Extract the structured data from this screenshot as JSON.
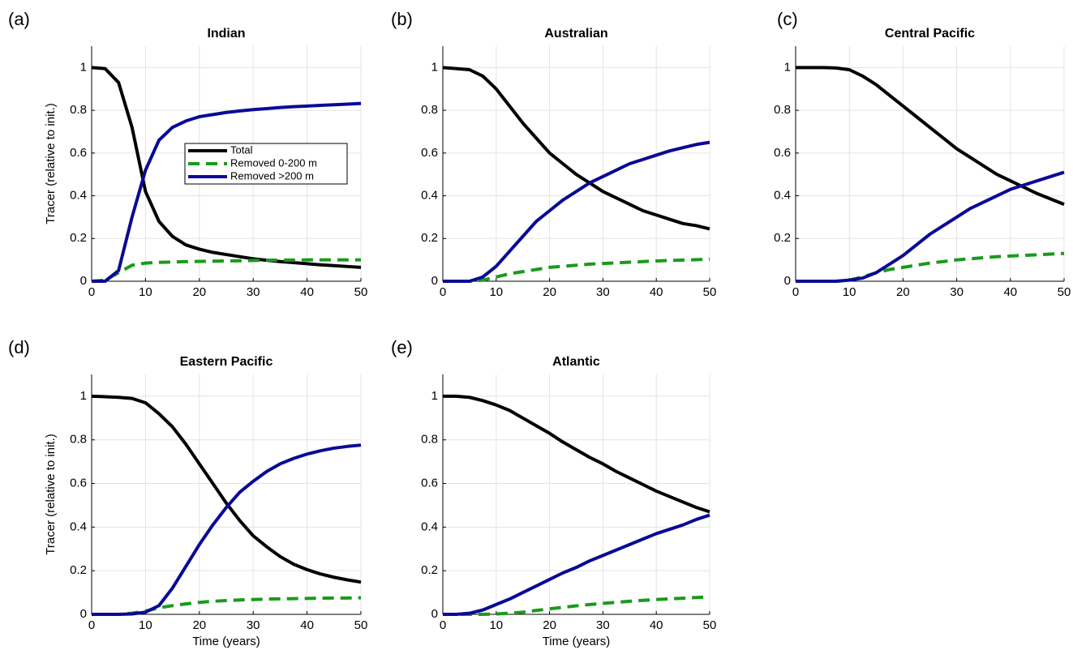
{
  "chart_data": [
    {
      "type": "line",
      "label": "(a)",
      "title": "Indian",
      "ylabel": "Tracer (relative to init.)",
      "x": [
        0,
        2.5,
        5,
        7.5,
        10,
        12.5,
        15,
        17.5,
        20,
        22.5,
        25,
        27.5,
        30,
        32.5,
        35,
        37.5,
        40,
        42.5,
        45,
        47.5,
        50
      ],
      "series": [
        {
          "name": "Total",
          "color": "#000000",
          "dash": false,
          "values": [
            1,
            0.995,
            0.93,
            0.72,
            0.42,
            0.28,
            0.21,
            0.17,
            0.15,
            0.135,
            0.125,
            0.115,
            0.105,
            0.098,
            0.092,
            0.087,
            0.082,
            0.077,
            0.073,
            0.069,
            0.065
          ]
        },
        {
          "name": "Removed 0-200 m",
          "color": "#1a9a1a",
          "dash": true,
          "values": [
            0,
            0.005,
            0.04,
            0.075,
            0.085,
            0.088,
            0.09,
            0.092,
            0.093,
            0.094,
            0.095,
            0.096,
            0.097,
            0.098,
            0.099,
            0.099,
            0.1,
            0.1,
            0.1,
            0.1,
            0.1
          ]
        },
        {
          "name": "Removed >200 m",
          "color": "#0a0a96",
          "dash": false,
          "values": [
            0,
            0,
            0.05,
            0.3,
            0.52,
            0.66,
            0.72,
            0.75,
            0.77,
            0.78,
            0.79,
            0.797,
            0.803,
            0.808,
            0.813,
            0.817,
            0.82,
            0.823,
            0.826,
            0.829,
            0.832
          ]
        }
      ],
      "xlim": [
        0,
        50
      ],
      "xticks": [
        0,
        10,
        20,
        30,
        40,
        50
      ],
      "ylim": [
        0,
        1.1
      ],
      "yticks": [
        0,
        0.2,
        0.4,
        0.6,
        0.8,
        1
      ],
      "grid": true,
      "legend": "center right"
    },
    {
      "type": "line",
      "label": "(b)",
      "title": "Australian",
      "x": [
        0,
        2.5,
        5,
        7.5,
        10,
        12.5,
        15,
        17.5,
        20,
        22.5,
        25,
        27.5,
        30,
        32.5,
        35,
        37.5,
        40,
        42.5,
        45,
        47.5,
        50
      ],
      "series": [
        {
          "color": "#000000",
          "dash": false,
          "values": [
            1,
            0.995,
            0.99,
            0.96,
            0.9,
            0.82,
            0.74,
            0.67,
            0.6,
            0.55,
            0.5,
            0.46,
            0.42,
            0.39,
            0.36,
            0.33,
            0.31,
            0.29,
            0.27,
            0.26,
            0.245
          ]
        },
        {
          "color": "#1a9a1a",
          "dash": true,
          "values": [
            0,
            0,
            0,
            0.005,
            0.02,
            0.035,
            0.045,
            0.055,
            0.065,
            0.07,
            0.075,
            0.08,
            0.083,
            0.086,
            0.089,
            0.092,
            0.095,
            0.097,
            0.099,
            0.101,
            0.103
          ]
        },
        {
          "color": "#0a0a96",
          "dash": false,
          "values": [
            0,
            0,
            0,
            0.02,
            0.07,
            0.14,
            0.21,
            0.28,
            0.33,
            0.38,
            0.42,
            0.46,
            0.49,
            0.52,
            0.55,
            0.57,
            0.59,
            0.61,
            0.625,
            0.64,
            0.65
          ]
        }
      ],
      "xlim": [
        0,
        50
      ],
      "xticks": [
        0,
        10,
        20,
        30,
        40,
        50
      ],
      "ylim": [
        0,
        1.1
      ],
      "yticks": [
        0,
        0.2,
        0.4,
        0.6,
        0.8,
        1
      ],
      "grid": true
    },
    {
      "type": "line",
      "label": "(c)",
      "title": "Central Pacific",
      "x": [
        0,
        2.5,
        5,
        7.5,
        10,
        12.5,
        15,
        17.5,
        20,
        22.5,
        25,
        27.5,
        30,
        32.5,
        35,
        37.5,
        40,
        42.5,
        45,
        47.5,
        50
      ],
      "series": [
        {
          "color": "#000000",
          "dash": false,
          "values": [
            1,
            1,
            1,
            0.998,
            0.99,
            0.96,
            0.92,
            0.87,
            0.82,
            0.77,
            0.72,
            0.67,
            0.62,
            0.58,
            0.54,
            0.5,
            0.47,
            0.44,
            0.41,
            0.385,
            0.36
          ]
        },
        {
          "color": "#1a9a1a",
          "dash": true,
          "values": [
            0,
            0,
            0,
            0,
            0.005,
            0.02,
            0.04,
            0.055,
            0.065,
            0.075,
            0.085,
            0.092,
            0.1,
            0.105,
            0.11,
            0.115,
            0.118,
            0.121,
            0.124,
            0.127,
            0.13
          ]
        },
        {
          "color": "#0a0a96",
          "dash": false,
          "values": [
            0,
            0,
            0,
            0,
            0.005,
            0.015,
            0.04,
            0.08,
            0.12,
            0.17,
            0.22,
            0.26,
            0.3,
            0.34,
            0.37,
            0.4,
            0.43,
            0.45,
            0.47,
            0.49,
            0.51
          ]
        }
      ],
      "xlim": [
        0,
        50
      ],
      "xticks": [
        0,
        10,
        20,
        30,
        40,
        50
      ],
      "ylim": [
        0,
        1.1
      ],
      "yticks": [
        0,
        0.2,
        0.4,
        0.6,
        0.8,
        1
      ],
      "grid": true
    },
    {
      "type": "line",
      "label": "(d)",
      "title": "Eastern Pacific",
      "ylabel": "Tracer (relative to init.)",
      "xlabel": "Time (years)",
      "x": [
        0,
        2.5,
        5,
        7.5,
        10,
        12.5,
        15,
        17.5,
        20,
        22.5,
        25,
        27.5,
        30,
        32.5,
        35,
        37.5,
        40,
        42.5,
        45,
        47.5,
        50
      ],
      "series": [
        {
          "color": "#000000",
          "dash": false,
          "values": [
            1,
            0.998,
            0.995,
            0.99,
            0.97,
            0.92,
            0.86,
            0.78,
            0.69,
            0.6,
            0.51,
            0.43,
            0.36,
            0.31,
            0.265,
            0.23,
            0.205,
            0.185,
            0.17,
            0.158,
            0.148
          ]
        },
        {
          "color": "#1a9a1a",
          "dash": true,
          "values": [
            0,
            0,
            0,
            0.005,
            0.015,
            0.03,
            0.04,
            0.048,
            0.055,
            0.06,
            0.063,
            0.066,
            0.068,
            0.07,
            0.071,
            0.072,
            0.073,
            0.074,
            0.075,
            0.075,
            0.076
          ]
        },
        {
          "color": "#0a0a96",
          "dash": false,
          "values": [
            0,
            0,
            0,
            0.002,
            0.01,
            0.04,
            0.12,
            0.22,
            0.32,
            0.41,
            0.49,
            0.56,
            0.61,
            0.655,
            0.69,
            0.715,
            0.735,
            0.75,
            0.762,
            0.77,
            0.776
          ]
        }
      ],
      "xlim": [
        0,
        50
      ],
      "xticks": [
        0,
        10,
        20,
        30,
        40,
        50
      ],
      "ylim": [
        0,
        1.1
      ],
      "yticks": [
        0,
        0.2,
        0.4,
        0.6,
        0.8,
        1
      ],
      "grid": true
    },
    {
      "type": "line",
      "label": "(e)",
      "title": "Atlantic",
      "xlabel": "Time (years)",
      "x": [
        0,
        2.5,
        5,
        7.5,
        10,
        12.5,
        15,
        17.5,
        20,
        22.5,
        25,
        27.5,
        30,
        32.5,
        35,
        37.5,
        40,
        42.5,
        45,
        47.5,
        50
      ],
      "series": [
        {
          "color": "#000000",
          "dash": false,
          "values": [
            1,
            1,
            0.995,
            0.98,
            0.96,
            0.935,
            0.9,
            0.865,
            0.83,
            0.79,
            0.755,
            0.72,
            0.69,
            0.655,
            0.625,
            0.595,
            0.565,
            0.54,
            0.515,
            0.49,
            0.47
          ]
        },
        {
          "color": "#1a9a1a",
          "dash": true,
          "values": [
            0,
            0,
            0,
            0,
            0.002,
            0.005,
            0.01,
            0.018,
            0.025,
            0.032,
            0.039,
            0.045,
            0.05,
            0.055,
            0.06,
            0.064,
            0.068,
            0.071,
            0.074,
            0.077,
            0.08
          ]
        },
        {
          "color": "#0a0a96",
          "dash": false,
          "values": [
            0,
            0,
            0.005,
            0.02,
            0.045,
            0.07,
            0.1,
            0.13,
            0.16,
            0.19,
            0.215,
            0.245,
            0.27,
            0.295,
            0.32,
            0.345,
            0.37,
            0.39,
            0.41,
            0.435,
            0.455
          ]
        }
      ],
      "xlim": [
        0,
        50
      ],
      "xticks": [
        0,
        10,
        20,
        30,
        40,
        50
      ],
      "ylim": [
        0,
        1.1
      ],
      "yticks": [
        0,
        0.2,
        0.4,
        0.6,
        0.8,
        1
      ],
      "grid": true
    }
  ]
}
